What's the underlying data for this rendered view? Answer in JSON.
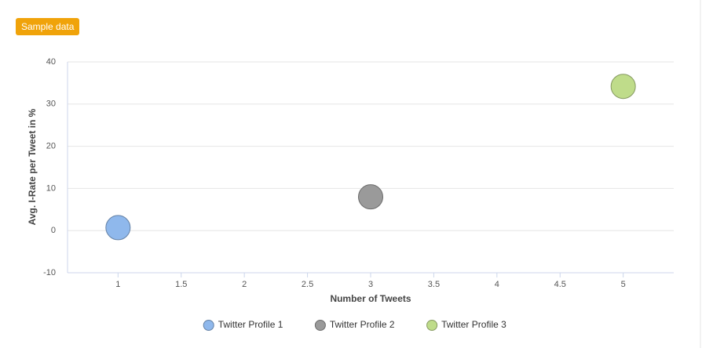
{
  "badge": "Sample data",
  "chart_data": {
    "type": "scatter",
    "x_label": "Number of Tweets",
    "y_label": "Avg. I-Rate per Tweet in %",
    "xlim": [
      0.6,
      5.4
    ],
    "xticks": [
      1,
      1.5,
      2,
      2.5,
      3,
      3.5,
      4,
      4.5,
      5
    ],
    "ylim": [
      -10,
      40
    ],
    "yticks": [
      -10,
      0,
      10,
      20,
      30,
      40
    ],
    "grid": true,
    "legend": "bottom",
    "series": [
      {
        "name": "Twitter Profile 1",
        "color": "#8fb8ec",
        "x": [
          1
        ],
        "values": [
          0.7
        ]
      },
      {
        "name": "Twitter Profile 2",
        "color": "#9a9a9a",
        "x": [
          3
        ],
        "values": [
          8
        ]
      },
      {
        "name": "Twitter Profile 3",
        "color": "#bfdc8a",
        "x": [
          5
        ],
        "values": [
          34.2
        ]
      }
    ]
  }
}
